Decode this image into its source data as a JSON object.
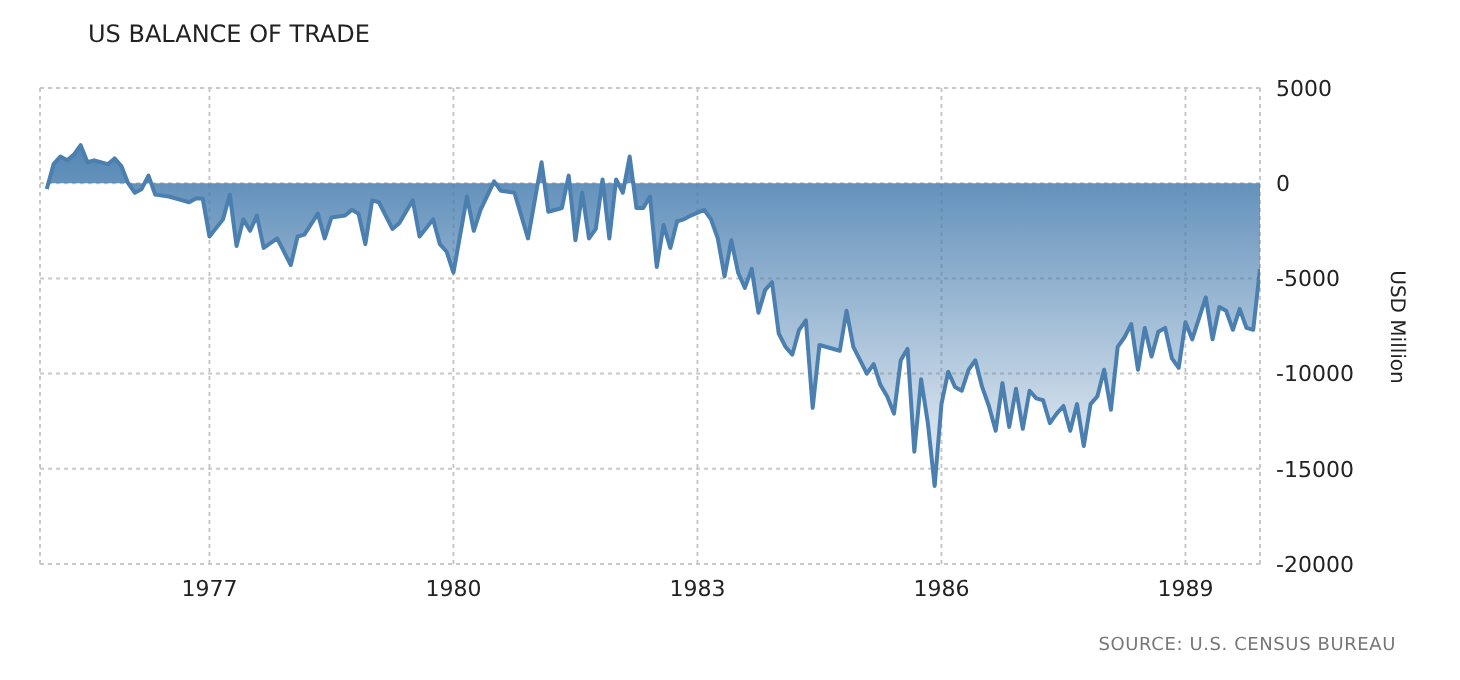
{
  "chart_data": {
    "type": "area",
    "title": "US BALANCE OF TRADE",
    "ylabel": "USD Million",
    "annotations": [
      "SOURCE: U.S. CENSUS BUREAU"
    ],
    "x": [
      "1975-01",
      "1975-02",
      "1975-03",
      "1975-04",
      "1975-05",
      "1975-06",
      "1975-07",
      "1975-08",
      "1975-10",
      "1975-11",
      "1975-12",
      "1976-01",
      "1976-02",
      "1976-03",
      "1976-04",
      "1976-05",
      "1976-07",
      "1976-09",
      "1976-10",
      "1976-11",
      "1976-12",
      "1977-01",
      "1977-03",
      "1977-04",
      "1977-05",
      "1977-06",
      "1977-07",
      "1977-08",
      "1977-09",
      "1977-11",
      "1978-01",
      "1978-02",
      "1978-03",
      "1978-05",
      "1978-06",
      "1978-07",
      "1978-09",
      "1978-10",
      "1978-11",
      "1978-12",
      "1979-01",
      "1979-02",
      "1979-04",
      "1979-05",
      "1979-07",
      "1979-08",
      "1979-10",
      "1979-11",
      "1979-12",
      "1980-01",
      "1980-03",
      "1980-04",
      "1980-05",
      "1980-07",
      "1980-08",
      "1980-10",
      "1980-12",
      "1981-02",
      "1981-03",
      "1981-05",
      "1981-06",
      "1981-07",
      "1981-08",
      "1981-09",
      "1981-10",
      "1981-11",
      "1981-12",
      "1982-01",
      "1982-02",
      "1982-03",
      "1982-04",
      "1982-05",
      "1982-06",
      "1982-07",
      "1982-08",
      "1982-09",
      "1982-10",
      "1982-11",
      "1982-12",
      "1983-02",
      "1983-03",
      "1983-04",
      "1983-05",
      "1983-06",
      "1983-07",
      "1983-08",
      "1983-09",
      "1983-10",
      "1983-11",
      "1983-12",
      "1984-01",
      "1984-02",
      "1984-03",
      "1984-04",
      "1984-05",
      "1984-06",
      "1984-07",
      "1984-10",
      "1984-11",
      "1984-12",
      "1985-02",
      "1985-03",
      "1985-04",
      "1985-05",
      "1985-06",
      "1985-07",
      "1985-08",
      "1985-09",
      "1985-10",
      "1985-11",
      "1985-12",
      "1986-01",
      "1986-02",
      "1986-03",
      "1986-04",
      "1986-05",
      "1986-06",
      "1986-07",
      "1986-08",
      "1986-09",
      "1986-10",
      "1986-11",
      "1986-12",
      "1987-01",
      "1987-02",
      "1987-03",
      "1987-04",
      "1987-05",
      "1987-06",
      "1987-07",
      "1987-08",
      "1987-09",
      "1987-10",
      "1987-11",
      "1987-12",
      "1988-01",
      "1988-02",
      "1988-03",
      "1988-04",
      "1988-05",
      "1988-06",
      "1988-07",
      "1988-08",
      "1988-09",
      "1988-10",
      "1988-11",
      "1988-12",
      "1989-01",
      "1989-02",
      "1989-03",
      "1989-04",
      "1989-05",
      "1989-06",
      "1989-07",
      "1989-08",
      "1989-09",
      "1989-10",
      "1989-11",
      "1989-12"
    ],
    "series": [
      {
        "color": "#4a7fb0",
        "values": [
          -300,
          1000,
          1400,
          1200,
          1500,
          2000,
          1100,
          1200,
          1000,
          1300,
          900,
          0,
          -500,
          -300,
          400,
          -600,
          -700,
          -900,
          -1000,
          -800,
          -800,
          -2800,
          -1900,
          -600,
          -3300,
          -1900,
          -2500,
          -1700,
          -3400,
          -2900,
          -4300,
          -2800,
          -2700,
          -1600,
          -2900,
          -1800,
          -1700,
          -1400,
          -1600,
          -3200,
          -900,
          -1000,
          -2400,
          -2100,
          -900,
          -2800,
          -1900,
          -3200,
          -3600,
          -4700,
          -700,
          -2500,
          -1400,
          100,
          -400,
          -500,
          -2900,
          1100,
          -1500,
          -1300,
          400,
          -3000,
          -500,
          -2900,
          -2400,
          200,
          -2900,
          200,
          -500,
          1400,
          -1300,
          -1300,
          -700,
          -4400,
          -2200,
          -3400,
          -2000,
          -1900,
          -1700,
          -1400,
          -1900,
          -2900,
          -4900,
          -3000,
          -4700,
          -5500,
          -4500,
          -6800,
          -5600,
          -5200,
          -7900,
          -8600,
          -9000,
          -7700,
          -7200,
          -11800,
          -8500,
          -8800,
          -6700,
          -8600,
          -10000,
          -9500,
          -10600,
          -11200,
          -12100,
          -9300,
          -8700,
          -14100,
          -10300,
          -12600,
          -15900,
          -11600,
          -9900,
          -10700,
          -10900,
          -9800,
          -9300,
          -10700,
          -11700,
          -13000,
          -10500,
          -12800,
          -10800,
          -12900,
          -10900,
          -11300,
          -11400,
          -12600,
          -12100,
          -11700,
          -13000,
          -11600,
          -13800,
          -11600,
          -11200,
          -9800,
          -11900,
          -8600,
          -8100,
          -7400,
          -9800,
          -7600,
          -9100,
          -7800,
          -7600,
          -9200,
          -9700,
          -7300,
          -8200,
          -7100,
          -6000,
          -8200,
          -6500,
          -6700,
          -7700,
          -6600,
          -7600,
          -7700,
          -4500
        ]
      }
    ],
    "xlim": [
      "1974-12",
      "1989-12"
    ],
    "xticks": [
      "1977",
      "1980",
      "1983",
      "1986",
      "1989"
    ],
    "ylim": [
      -20000,
      5000
    ],
    "yticks": [
      -20000,
      -15000,
      -10000,
      -5000,
      0,
      5000
    ],
    "grid": true,
    "marker": "none",
    "line_style": "solid"
  }
}
